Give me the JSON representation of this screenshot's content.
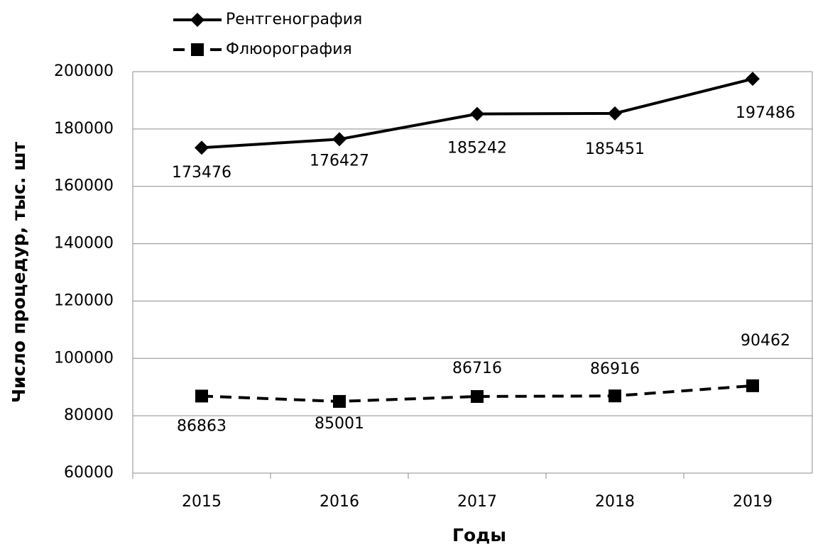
{
  "chart_data": {
    "type": "line",
    "categories": [
      "2015",
      "2016",
      "2017",
      "2018",
      "2019"
    ],
    "series": [
      {
        "name": "Рентгенография",
        "color": "#000000",
        "marker": "diamond",
        "dash": false,
        "values": [
          173476,
          176427,
          185242,
          185451,
          197486
        ]
      },
      {
        "name": "Флюорография",
        "color": "#000000",
        "marker": "square",
        "dash": true,
        "values": [
          86863,
          85001,
          86716,
          86916,
          90462
        ]
      }
    ],
    "x_label": "Годы",
    "y_label": "Число процедур, тыс. шт",
    "ylim": [
      60000,
      200000
    ],
    "yticks": [
      60000,
      80000,
      100000,
      120000,
      140000,
      160000,
      180000,
      200000
    ],
    "grid": true,
    "legend": "top-left"
  }
}
